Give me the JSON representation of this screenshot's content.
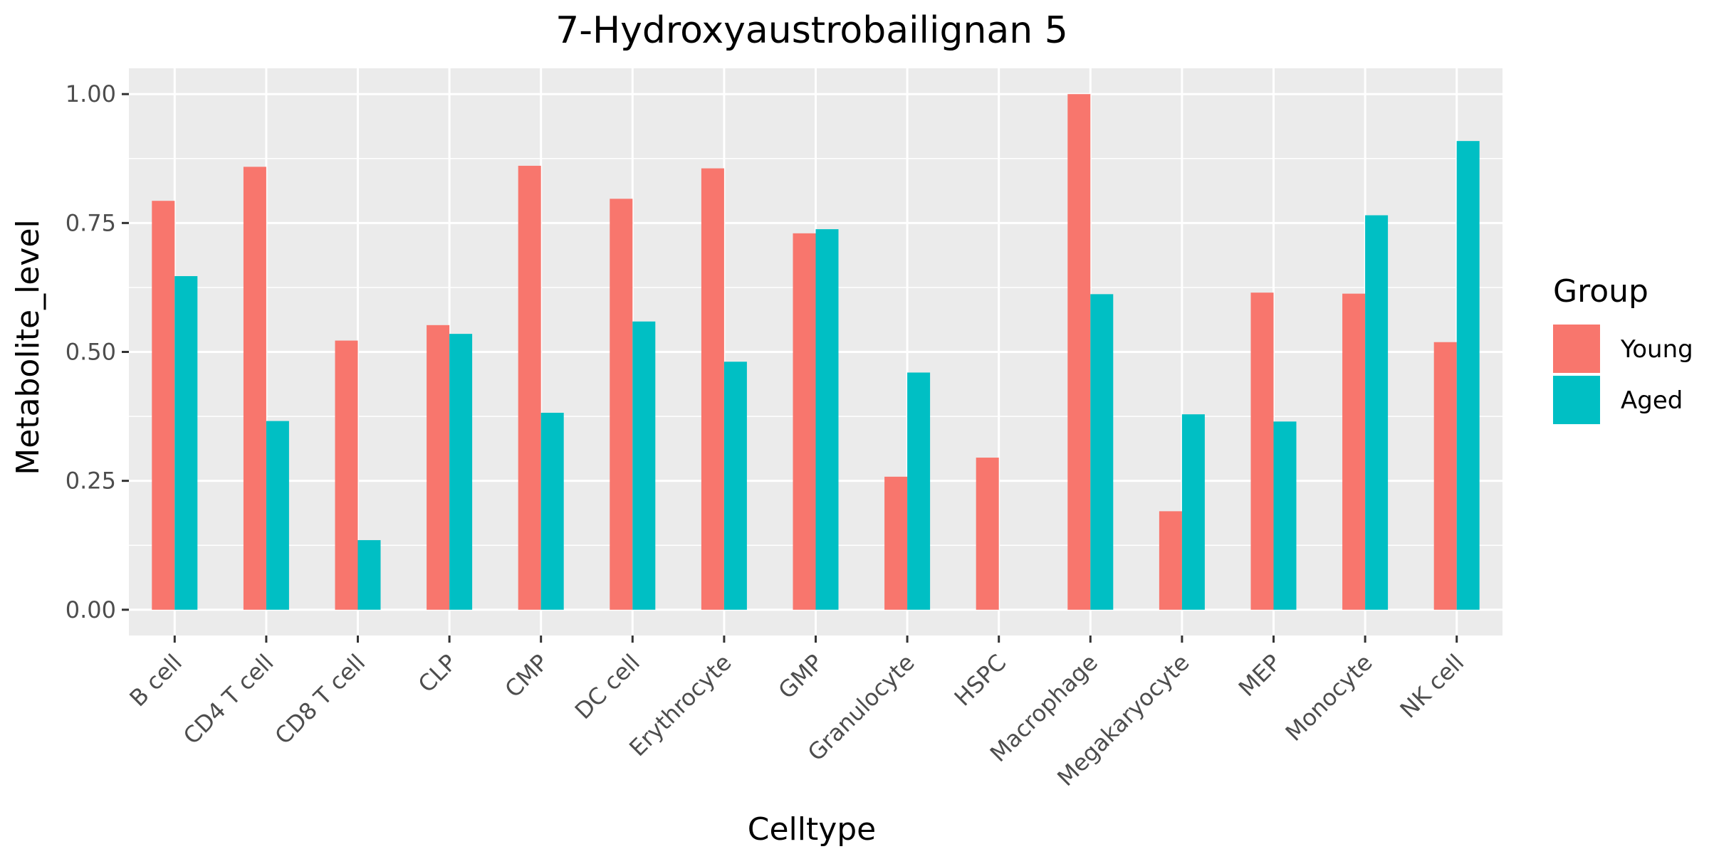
{
  "chart_data": {
    "type": "bar",
    "title": "7-Hydroxyaustrobailignan 5",
    "xlabel": "Celltype",
    "ylabel": "Metabolite_level",
    "categories": [
      "B cell",
      "CD4 T cell",
      "CD8 T cell",
      "CLP",
      "CMP",
      "DC cell",
      "Erythrocyte",
      "GMP",
      "Granulocyte",
      "HSPC",
      "Macrophage",
      "Megakaryocyte",
      "MEP",
      "Monocyte",
      "NK cell"
    ],
    "series": [
      {
        "name": "Young",
        "color": "#F8766D",
        "values": [
          0.793,
          0.859,
          0.522,
          0.552,
          0.861,
          0.797,
          0.856,
          0.73,
          0.258,
          0.295,
          1.0,
          0.191,
          0.615,
          0.613,
          0.519
        ]
      },
      {
        "name": "Aged",
        "color": "#00BFC4",
        "values": [
          0.647,
          0.366,
          0.135,
          0.535,
          0.382,
          0.559,
          0.481,
          0.738,
          0.46,
          null,
          0.612,
          0.379,
          0.365,
          0.765,
          0.909
        ]
      }
    ],
    "ylim": [
      -0.05,
      1.05
    ],
    "yticks": [
      0.0,
      0.25,
      0.5,
      0.75,
      1.0
    ],
    "ytick_labels": [
      "0.00",
      "0.25",
      "0.50",
      "0.75",
      "1.00"
    ],
    "grid": true,
    "legend": {
      "title": "Group",
      "position": "right"
    },
    "colors": {
      "panel_background": "#EBEBEB",
      "grid": "#FFFFFF",
      "tick_text": "#4D4D4D",
      "tick_mark": "#333333"
    }
  }
}
